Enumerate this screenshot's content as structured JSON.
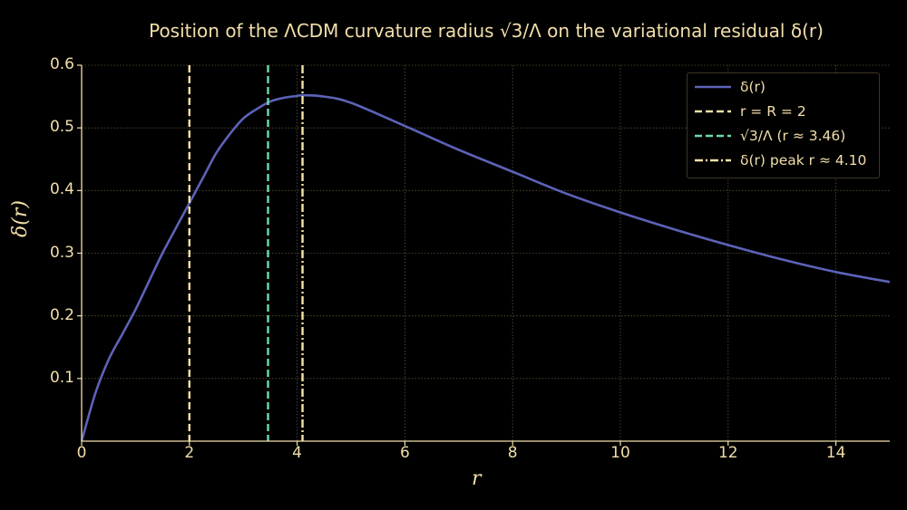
{
  "chart_data": {
    "type": "line",
    "title": "Position of the ΛCDM curvature radius √3/Λ on the variational residual δ(r)",
    "xlabel": "r",
    "ylabel": "δ(r)",
    "xlim": [
      0,
      15
    ],
    "ylim": [
      0,
      0.6
    ],
    "xticks": [
      0,
      2,
      4,
      6,
      8,
      10,
      12,
      14
    ],
    "yticks": [
      0.1,
      0.2,
      0.3,
      0.4,
      0.5,
      0.6
    ],
    "grid": true,
    "legend_position": "top-right",
    "series": [
      {
        "name": "δ(r)",
        "color": "#5c63b8",
        "x": [
          0,
          0.25,
          0.5,
          0.75,
          1.0,
          1.25,
          1.5,
          1.75,
          2.0,
          2.25,
          2.5,
          2.75,
          3.0,
          3.25,
          3.5,
          3.75,
          4.0,
          4.1,
          4.5,
          5.0,
          6.0,
          7.0,
          8.0,
          9.0,
          10.0,
          11.0,
          12.0,
          13.0,
          14.0,
          15.0
        ],
        "y": [
          0.0,
          0.075,
          0.13,
          0.17,
          0.21,
          0.255,
          0.3,
          0.34,
          0.38,
          0.42,
          0.46,
          0.49,
          0.515,
          0.53,
          0.542,
          0.548,
          0.551,
          0.552,
          0.55,
          0.54,
          0.503,
          0.465,
          0.43,
          0.395,
          0.365,
          0.338,
          0.313,
          0.29,
          0.27,
          0.254
        ]
      }
    ],
    "vlines": [
      {
        "name": "r = R = 2",
        "x": 2.0,
        "color": "#f7e4a8",
        "style": "dashed"
      },
      {
        "name": "√3/Λ (r ≈ 3.46)",
        "x": 3.46,
        "color": "#6fdcaa",
        "style": "dashed"
      },
      {
        "name": "δ(r) peak r ≈ 4.10",
        "x": 4.1,
        "color": "#f7e4a8",
        "style": "dashdot"
      }
    ]
  },
  "colors": {
    "text": "#f2dfa9",
    "axis": "#f2dfa9",
    "grid": "#5a5236",
    "background": "#000000"
  }
}
